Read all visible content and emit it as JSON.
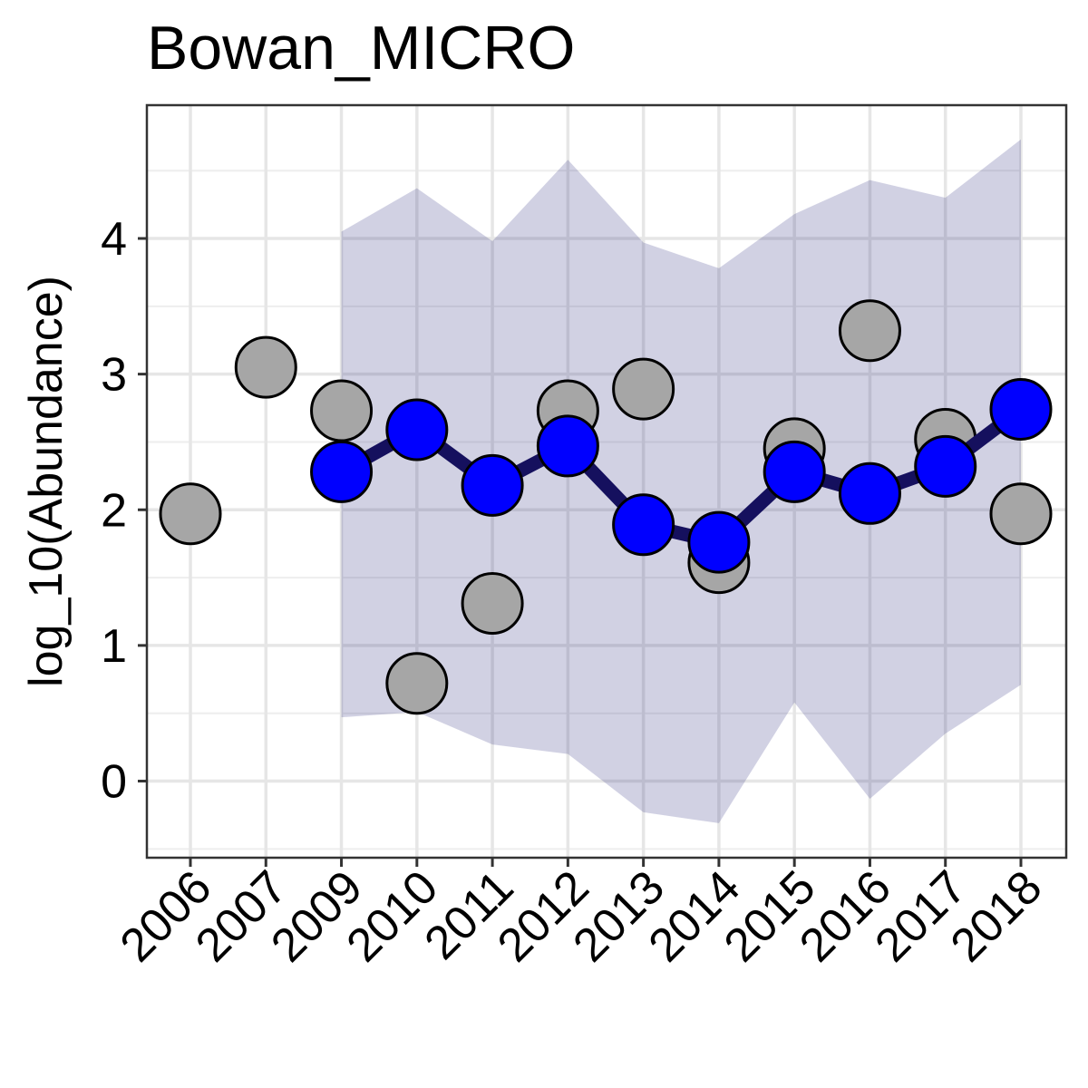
{
  "chart_data": {
    "type": "line",
    "title": "Bowan_MICRO",
    "xlabel": "",
    "ylabel": "log_10(Abundance)",
    "categories": [
      "2006",
      "2007",
      "2009",
      "2010",
      "2011",
      "2012",
      "2013",
      "2014",
      "2015",
      "2016",
      "2017",
      "2018"
    ],
    "ylim": [
      -0.55,
      5.0
    ],
    "yticks": [
      0,
      1,
      2,
      3,
      4
    ],
    "grid": true,
    "legend": "none",
    "series": [
      {
        "values": [
          1.97,
          3.05,
          2.73,
          0.72,
          1.31,
          2.73,
          2.89,
          1.61,
          2.45,
          3.32,
          2.52,
          1.97
        ],
        "color": "#a6a6a6",
        "style": "points"
      },
      {
        "values": [
          null,
          null,
          2.28,
          2.59,
          2.18,
          2.47,
          1.89,
          1.76,
          2.28,
          2.12,
          2.32,
          2.74
        ],
        "color": "#0000ff",
        "line_color": "#15105e",
        "style": "line+points"
      }
    ],
    "band": {
      "lower": [
        null,
        null,
        0.47,
        0.51,
        0.27,
        0.2,
        -0.23,
        -0.31,
        0.58,
        -0.13,
        0.35,
        0.71
      ],
      "upper": [
        null,
        null,
        4.05,
        4.37,
        3.98,
        4.58,
        3.97,
        3.78,
        4.18,
        4.43,
        4.3,
        4.73
      ],
      "color": "#d0d0e2"
    }
  }
}
